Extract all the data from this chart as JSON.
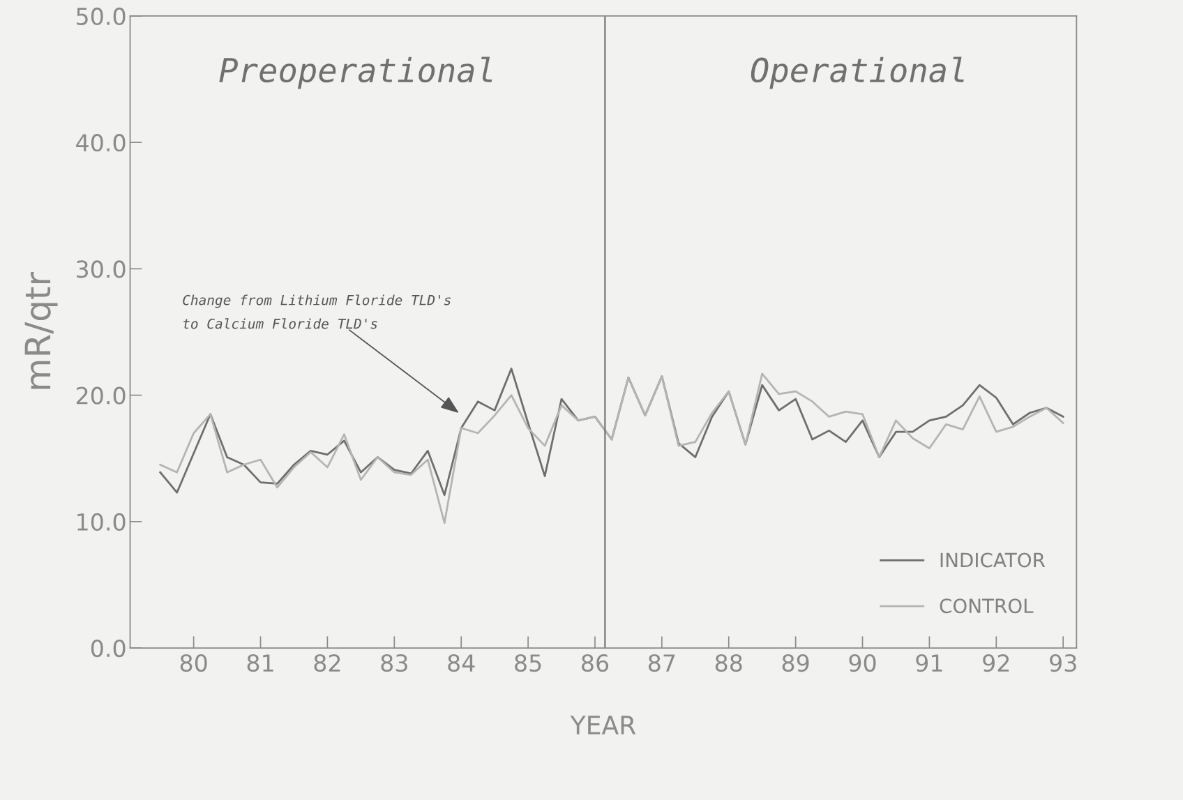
{
  "chart_data": {
    "type": "line",
    "xlabel": "YEAR",
    "ylabel": "mR/qtr",
    "x": [
      79.5,
      79.75,
      80.0,
      80.25,
      80.5,
      80.75,
      81.0,
      81.25,
      81.5,
      81.75,
      82.0,
      82.25,
      82.5,
      82.75,
      83.0,
      83.25,
      83.5,
      83.75,
      84.0,
      84.25,
      84.5,
      84.75,
      85.0,
      85.25,
      85.5,
      85.75,
      86.0,
      86.25,
      86.5,
      86.75,
      87.0,
      87.25,
      87.5,
      87.75,
      88.0,
      88.25,
      88.5,
      88.75,
      89.0,
      89.25,
      89.5,
      89.75,
      90.0,
      90.25,
      90.5,
      90.75,
      91.0,
      91.25,
      91.5,
      91.75,
      92.0,
      92.25,
      92.5,
      92.75,
      93.0
    ],
    "series": [
      {
        "name": "INDICATOR",
        "color": "#6e6e6e",
        "values": [
          13.9,
          12.3,
          15.4,
          18.5,
          15.1,
          14.5,
          13.1,
          13.0,
          14.5,
          15.6,
          15.3,
          16.4,
          13.9,
          15.1,
          14.1,
          13.8,
          15.6,
          12.1,
          17.4,
          19.5,
          18.8,
          22.1,
          17.8,
          13.6,
          19.7,
          18.0,
          18.3,
          16.5,
          21.4,
          18.4,
          21.5,
          16.2,
          15.1,
          18.3,
          20.3,
          16.1,
          20.8,
          18.8,
          19.7,
          16.5,
          17.2,
          16.3,
          18.0,
          15.1,
          17.1,
          17.1,
          18.0,
          18.3,
          19.2,
          20.8,
          19.8,
          17.7,
          18.6,
          19.0,
          18.3
        ]
      },
      {
        "name": "CONTROL",
        "color": "#b4b4b4",
        "values": [
          14.5,
          13.9,
          17.0,
          18.5,
          13.9,
          14.5,
          14.9,
          12.7,
          14.3,
          15.5,
          14.3,
          16.9,
          13.3,
          15.1,
          13.9,
          13.7,
          14.9,
          9.9,
          17.4,
          17.0,
          18.4,
          20.0,
          17.4,
          16.0,
          19.2,
          18.0,
          18.3,
          16.5,
          21.4,
          18.4,
          21.5,
          16.0,
          16.3,
          18.6,
          20.3,
          16.1,
          21.7,
          20.1,
          20.3,
          19.5,
          18.3,
          18.7,
          18.5,
          15.1,
          18.0,
          16.6,
          15.8,
          17.7,
          17.3,
          19.9,
          17.1,
          17.5,
          18.3,
          19.0,
          17.8
        ]
      }
    ],
    "xlim": [
      79.05,
      93.2
    ],
    "ylim": [
      0,
      50
    ],
    "xticks": [
      80,
      81,
      82,
      83,
      84,
      85,
      86,
      87,
      88,
      89,
      90,
      91,
      92,
      93
    ],
    "yticks": [
      {
        "value": 0,
        "label": "0.0"
      },
      {
        "value": 10,
        "label": "10.0"
      },
      {
        "value": 20,
        "label": "20.0"
      },
      {
        "value": 30,
        "label": "30.0"
      },
      {
        "value": 40,
        "label": "40.0"
      },
      {
        "value": 50,
        "label": "50.0"
      }
    ],
    "ref_lines": [
      {
        "axis": "x",
        "value": 86.15,
        "color": "#6e6e6e"
      }
    ],
    "annotations": [
      "Preoperational",
      "Operational",
      "Change from Lithium Floride TLD's\nto Calcium Floride TLD's"
    ],
    "legend": "bottom right",
    "grid": false,
    "marker": "none",
    "line_style": "solid"
  }
}
